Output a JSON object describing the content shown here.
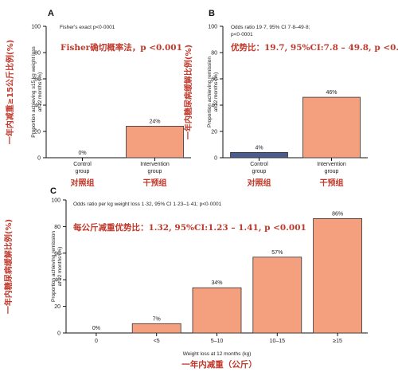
{
  "chart_data": [
    {
      "panel_label": "A",
      "type": "bar",
      "stat_text": "Fisher's exact p<0·0001",
      "annotation_cn": "Fisher确切概率法，p <0.001",
      "ylabel": "Proportion achieving ≥15 kg weight loss at 12 months (%)",
      "ylabel_cn": "一年内减重≥15公斤比例(%)",
      "ylim": [
        0,
        100
      ],
      "yticks": [
        0,
        20,
        40,
        60,
        80,
        100
      ],
      "categories": [
        "Control group",
        "Intervention group"
      ],
      "categories_cn": [
        "对照组",
        "干预组"
      ],
      "values": [
        0,
        24
      ],
      "value_labels": [
        "0%",
        "24%"
      ],
      "colors": [
        "#4a5b8c",
        "#f4a07f"
      ]
    },
    {
      "panel_label": "B",
      "type": "bar",
      "stat_text": "Odds ratio 19·7, 95% CI 7·8–49·8; p<0·0001",
      "annotation_cn": "优势比：19.7, 95%CI:7.8 – 49.8, p <0.001",
      "ylabel": "Proportion achieving remission at 12 months (%)",
      "ylabel_cn": "一年内糖尿病缓解比例(%)",
      "ylim": [
        0,
        100
      ],
      "yticks": [
        0,
        20,
        40,
        60,
        80,
        100
      ],
      "categories": [
        "Control group",
        "Intervention group"
      ],
      "categories_cn": [
        "对照组",
        "干预组"
      ],
      "values": [
        4,
        46
      ],
      "value_labels": [
        "4%",
        "46%"
      ],
      "colors": [
        "#4a5b8c",
        "#f4a07f"
      ]
    },
    {
      "panel_label": "C",
      "type": "bar",
      "stat_text": "Odds ratio per kg weight loss 1·32, 95% CI 1·23–1·41; p<0·0001",
      "annotation_cn": "每公斤减重优势比：1.32, 95%CI:1.23 – 1.41, p <0.001",
      "ylabel": "Proportion achieving remission at 12 months (%)",
      "ylabel_cn": "一年内糖尿病缓解比例(%)",
      "xlabel": "Weight loss at 12 months (kg)",
      "xlabel_cn": "一年内减重（公斤）",
      "ylim": [
        0,
        100
      ],
      "yticks": [
        0,
        20,
        40,
        60,
        80,
        100
      ],
      "categories": [
        "0",
        "<5",
        "5–10",
        "10–15",
        "≥15"
      ],
      "values": [
        0,
        7,
        34,
        57,
        86
      ],
      "value_labels": [
        "0%",
        "7%",
        "34%",
        "57%",
        "86%"
      ],
      "colors": [
        "#f4a07f",
        "#f4a07f",
        "#f4a07f",
        "#f4a07f",
        "#f4a07f"
      ]
    }
  ]
}
